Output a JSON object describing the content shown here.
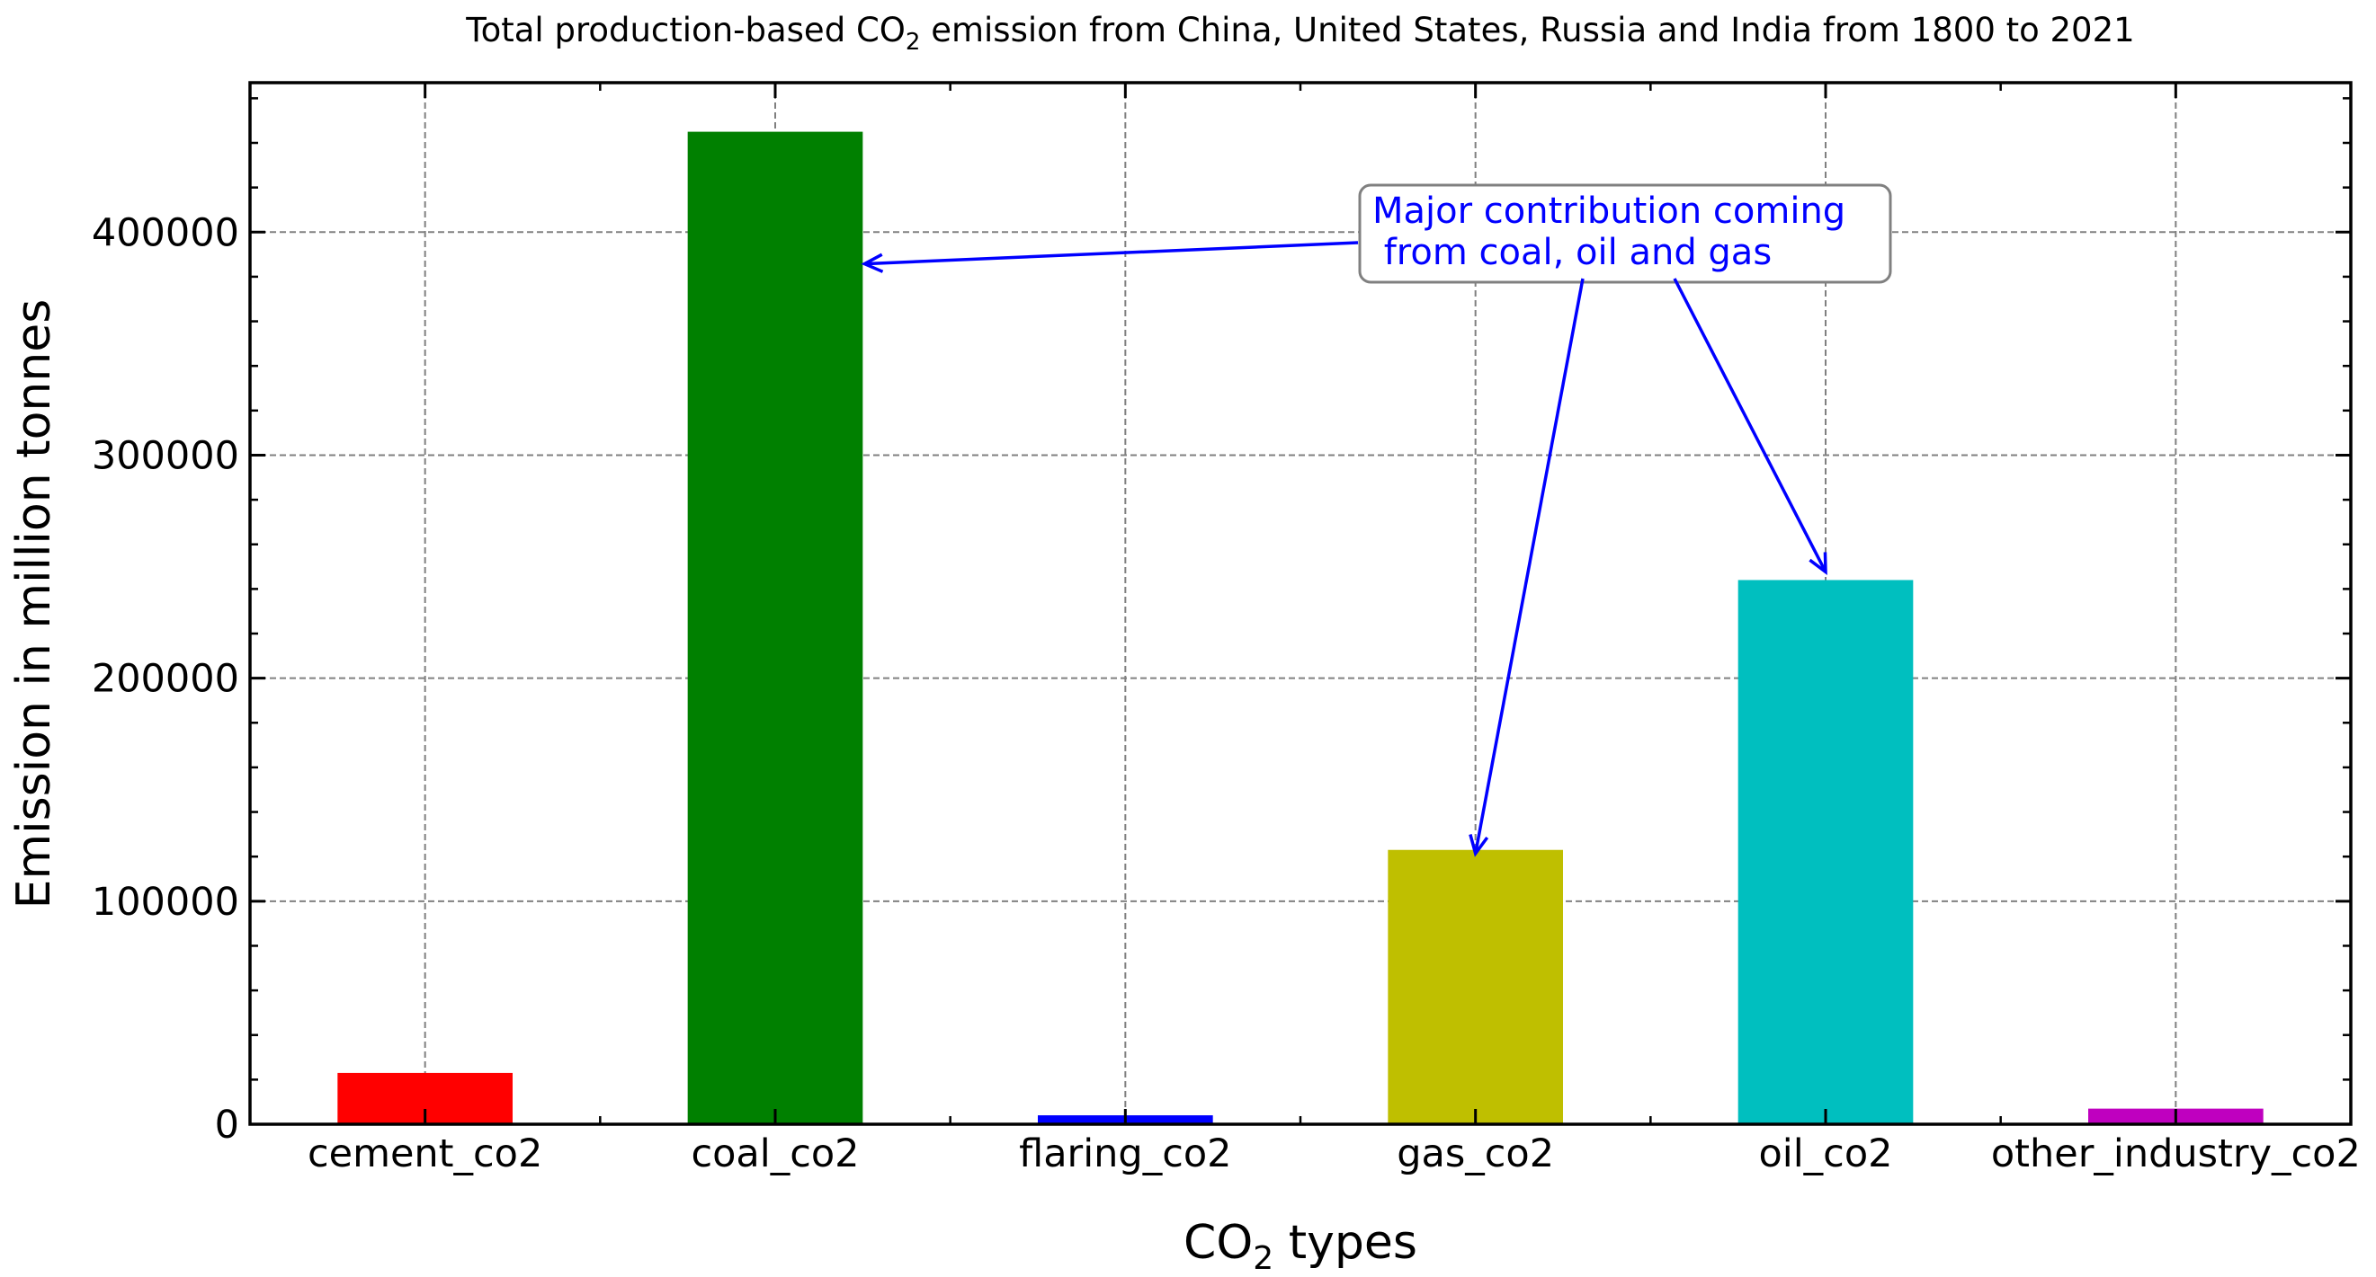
{
  "chart_data": {
    "type": "bar",
    "title": {
      "before": "Total production-based CO",
      "sub": "2",
      "after": " emission from China, United States, Russia and India from 1800 to 2021"
    },
    "xlabel": {
      "before": "CO",
      "sub": "2",
      "after": " types"
    },
    "ylabel": "Emission in million tonnes",
    "categories": [
      "cement_co2",
      "coal_co2",
      "flaring_co2",
      "gas_co2",
      "oil_co2",
      "other_industry_co2"
    ],
    "values": [
      23000,
      445000,
      4000,
      123000,
      244000,
      7000
    ],
    "colors": [
      "#ff0000",
      "#008000",
      "#0000ff",
      "#bfbf00",
      "#00bfbf",
      "#bf00bf"
    ],
    "ylim": [
      0,
      467000
    ],
    "yticks": [
      0,
      100000,
      200000,
      300000,
      400000
    ],
    "ytick_labels": [
      "0",
      "100000",
      "200000",
      "300000",
      "400000"
    ],
    "grid": true,
    "annotation": {
      "text_lines": [
        "Major contribution coming",
        " from coal, oil and gas"
      ],
      "color": "#0000ff",
      "targets": [
        "coal_co2",
        "gas_co2",
        "oil_co2"
      ]
    }
  }
}
